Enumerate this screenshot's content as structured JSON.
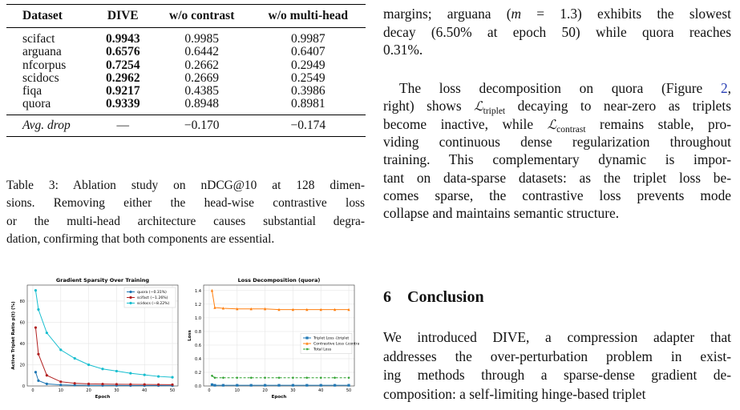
{
  "table": {
    "header": [
      "Dataset",
      "DIVE",
      "w/o contrast",
      "w/o multi-head"
    ],
    "rows": [
      [
        "scifact",
        "0.9943",
        "0.9985",
        "0.9987"
      ],
      [
        "arguana",
        "0.6576",
        "0.6442",
        "0.6407"
      ],
      [
        "nfcorpus",
        "0.7254",
        "0.2662",
        "0.2949"
      ],
      [
        "scidocs",
        "0.2962",
        "0.2669",
        "0.2549"
      ],
      [
        "fiqa",
        "0.9217",
        "0.4385",
        "0.3986"
      ],
      [
        "quora",
        "0.9339",
        "0.8948",
        "0.8981"
      ]
    ],
    "summary": [
      "Avg. drop",
      "—",
      "−0.170",
      "−0.174"
    ]
  },
  "table_caption": [
    [
      "Table 3: Ablation study on nDCG@10 at 128 dimen-"
    ],
    [
      "sions. Removing either the head-wise contrastive loss"
    ],
    [
      "or the multi-head architecture causes substantial degra-"
    ],
    [
      "dation, confirming that both components are essential."
    ]
  ],
  "figure": {
    "charts": [
      {
        "type": "line",
        "title": "Gradient Sparsity Over Training",
        "x_label": "Epoch",
        "y_label": "Active Triplet Ratio p(t) (%)",
        "x": [
          1,
          2,
          5,
          10,
          15,
          20,
          25,
          30,
          35,
          40,
          45,
          50
        ],
        "xlim": [
          -2,
          52
        ],
        "xticks": [
          0,
          10,
          20,
          30,
          40,
          50
        ],
        "ylim": [
          0,
          95
        ],
        "yticks": [
          0,
          20,
          40,
          60,
          80
        ],
        "grid": true,
        "legend": "upper right",
        "series": [
          {
            "name": "quora (−0.31%)",
            "color": "#1f77b4",
            "marker": "o",
            "values": [
              13,
              5,
              2,
              1,
              0.8,
              0.6,
              0.5,
              0.45,
              0.4,
              0.35,
              0.33,
              0.31
            ]
          },
          {
            "name": "scifact (−1.26%)",
            "color": "#b22222",
            "marker": "o",
            "values": [
              55,
              30,
              10,
              4,
              2.5,
              2,
              1.8,
              1.6,
              1.5,
              1.4,
              1.3,
              1.26
            ]
          },
          {
            "name": "scidocs (−8.22%)",
            "color": "#17becf",
            "marker": "o",
            "values": [
              90,
              72,
              50,
              34,
              26,
              20,
              16,
              14,
              12,
              10.5,
              9,
              8.22
            ]
          }
        ]
      },
      {
        "type": "line",
        "title": "Loss Decomposition (quora)",
        "x_label": "Epoch",
        "y_label": "Loss",
        "x": [
          1,
          2,
          5,
          10,
          15,
          20,
          25,
          30,
          35,
          40,
          45,
          50
        ],
        "xlim": [
          -2,
          52
        ],
        "xticks": [
          0,
          10,
          20,
          30,
          40,
          50
        ],
        "ylim": [
          0,
          1.48
        ],
        "yticks": [
          {
            "value": 0,
            "label": "0.0"
          },
          {
            "value": 0.2,
            "label": "0.2"
          },
          {
            "value": 0.4,
            "label": "0.4"
          },
          {
            "value": 0.6,
            "label": "0.6"
          },
          {
            "value": 0.8,
            "label": "0.8"
          },
          {
            "value": 1,
            "label": "1.0"
          },
          {
            "value": 1.2,
            "label": "1.2"
          },
          {
            "value": 1.4,
            "label": "1.4"
          }
        ],
        "grid": true,
        "legend": "center right",
        "series": [
          {
            "name": "Triplet Loss ℒtriplet",
            "color": "#1f77b4",
            "marker": "s",
            "values": [
              0.02,
              0.01,
              0.01,
              0.01,
              0.01,
              0.01,
              0.01,
              0.01,
              0.01,
              0.01,
              0.01,
              0.01
            ]
          },
          {
            "name": "Contrastive Loss ℒcontrast",
            "color": "#ff7f0e",
            "marker": "^",
            "values": [
              1.4,
              1.15,
              1.14,
              1.13,
              1.13,
              1.13,
              1.12,
              1.12,
              1.12,
              1.12,
              1.12,
              1.12
            ]
          },
          {
            "name": "Total Loss",
            "color": "#2ca02c",
            "marker": "D",
            "dash": true,
            "values": [
              0.15,
              0.12,
              0.12,
              0.12,
              0.12,
              0.12,
              0.12,
              0.12,
              0.12,
              0.12,
              0.12,
              0.12
            ]
          }
        ]
      }
    ]
  },
  "right_column": {
    "para1": [
      [
        "margins; arguana (",
        {
          "i": "m"
        },
        " = 1.3) exhibits the slowest"
      ],
      [
        "decay (6.50% at epoch 50) while quora reaches"
      ],
      [
        "0.31%."
      ]
    ],
    "para2": [
      [
        "The loss decomposition on quora (Figure ",
        {
          "link": "2"
        },
        ","
      ],
      [
        "right) shows ",
        {
          "sym": "ℒ",
          "sub": "triplet"
        },
        " decaying to near-zero as triplets"
      ],
      [
        "become inactive, while ",
        {
          "sym": "ℒ",
          "sub": "contrast"
        },
        " remains stable, pro-"
      ],
      [
        "viding continuous dense regularization throughout"
      ],
      [
        "training. This complementary dynamic is impor-"
      ],
      [
        "tant on data-sparse datasets: as the triplet loss be-"
      ],
      [
        "comes sparse, the contrastive loss prevents mode"
      ],
      [
        "collapse and maintains semantic structure."
      ]
    ],
    "heading": {
      "number": "6",
      "title": "Conclusion"
    },
    "para3": [
      [
        "We introduced DIVE, a compression adapter that"
      ],
      [
        "addresses the over-perturbation problem in exist-"
      ],
      [
        "ing methods through a sparse-dense gradient de-"
      ],
      [
        "composition: a self-limiting hinge-based triplet"
      ]
    ]
  }
}
